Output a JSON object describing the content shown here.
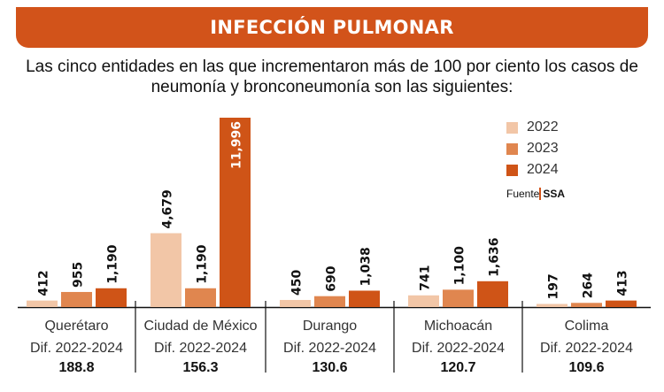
{
  "header": {
    "title": "INFECCIÓN PULMONAR"
  },
  "subtitle": {
    "line1": "Las cinco entidades en las que incrementaron más de 100 por ciento los casos de",
    "line2": "neumonía y bronconeumonía son las siguientes:"
  },
  "legend": {
    "items": [
      {
        "label": "2022",
        "color": "#f2c6a7"
      },
      {
        "label": "2023",
        "color": "#e0864f"
      },
      {
        "label": "2024",
        "color": "#cf5417"
      }
    ]
  },
  "source": {
    "label": "Fuente",
    "value": "SSA"
  },
  "chart_data": {
    "type": "bar",
    "categories": [
      "Querétaro",
      "Ciudad de México",
      "Durango",
      "Michoacán",
      "Colima"
    ],
    "series": [
      {
        "name": "2022",
        "color": "#f2c6a7",
        "values": [
          412,
          4679,
          450,
          741,
          197
        ],
        "labels": [
          "412",
          "4,679",
          "450",
          "741",
          "197"
        ]
      },
      {
        "name": "2023",
        "color": "#e0864f",
        "values": [
          955,
          1190,
          690,
          1100,
          264
        ],
        "labels": [
          "955",
          "1,190",
          "690",
          "1,100",
          "264"
        ]
      },
      {
        "name": "2024",
        "color": "#cf5417",
        "values": [
          1190,
          11996,
          1038,
          1636,
          413
        ],
        "labels": [
          "1,190",
          "11,996",
          "1,038",
          "1,636",
          "413"
        ]
      }
    ],
    "diff_label": "Dif. 2022-2024",
    "diff_values": [
      "188.8",
      "156.3",
      "130.6",
      "120.7",
      "109.6"
    ],
    "legend_position": "top-right",
    "grid": false
  }
}
